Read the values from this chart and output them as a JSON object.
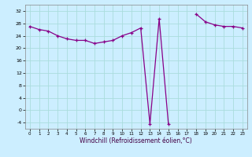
{
  "x": [
    0,
    1,
    2,
    3,
    4,
    5,
    6,
    7,
    8,
    9,
    10,
    11,
    12,
    13,
    14,
    15,
    16,
    17,
    18,
    19,
    20,
    21,
    22,
    23
  ],
  "y": [
    27,
    26,
    25.5,
    24,
    23,
    22.5,
    22.5,
    21.5,
    22,
    22.5,
    24,
    25,
    26.5,
    -4.5,
    29.5,
    -4.5,
    null,
    null,
    31,
    28.5,
    27.5,
    27,
    27,
    26.5
  ],
  "xlabel": "Windchill (Refroidissement éolien,°C)",
  "bg_color": "#cceeff",
  "grid_color": "#aadddd",
  "line_color": "#880088",
  "marker_color": "#880088",
  "ylim": [
    -6,
    34
  ],
  "xlim": [
    -0.5,
    23.5
  ],
  "yticks": [
    -4,
    0,
    4,
    8,
    12,
    16,
    20,
    24,
    28,
    32
  ],
  "xticks": [
    0,
    1,
    2,
    3,
    4,
    5,
    6,
    7,
    8,
    9,
    10,
    11,
    12,
    13,
    14,
    15,
    16,
    17,
    18,
    19,
    20,
    21,
    22,
    23
  ]
}
